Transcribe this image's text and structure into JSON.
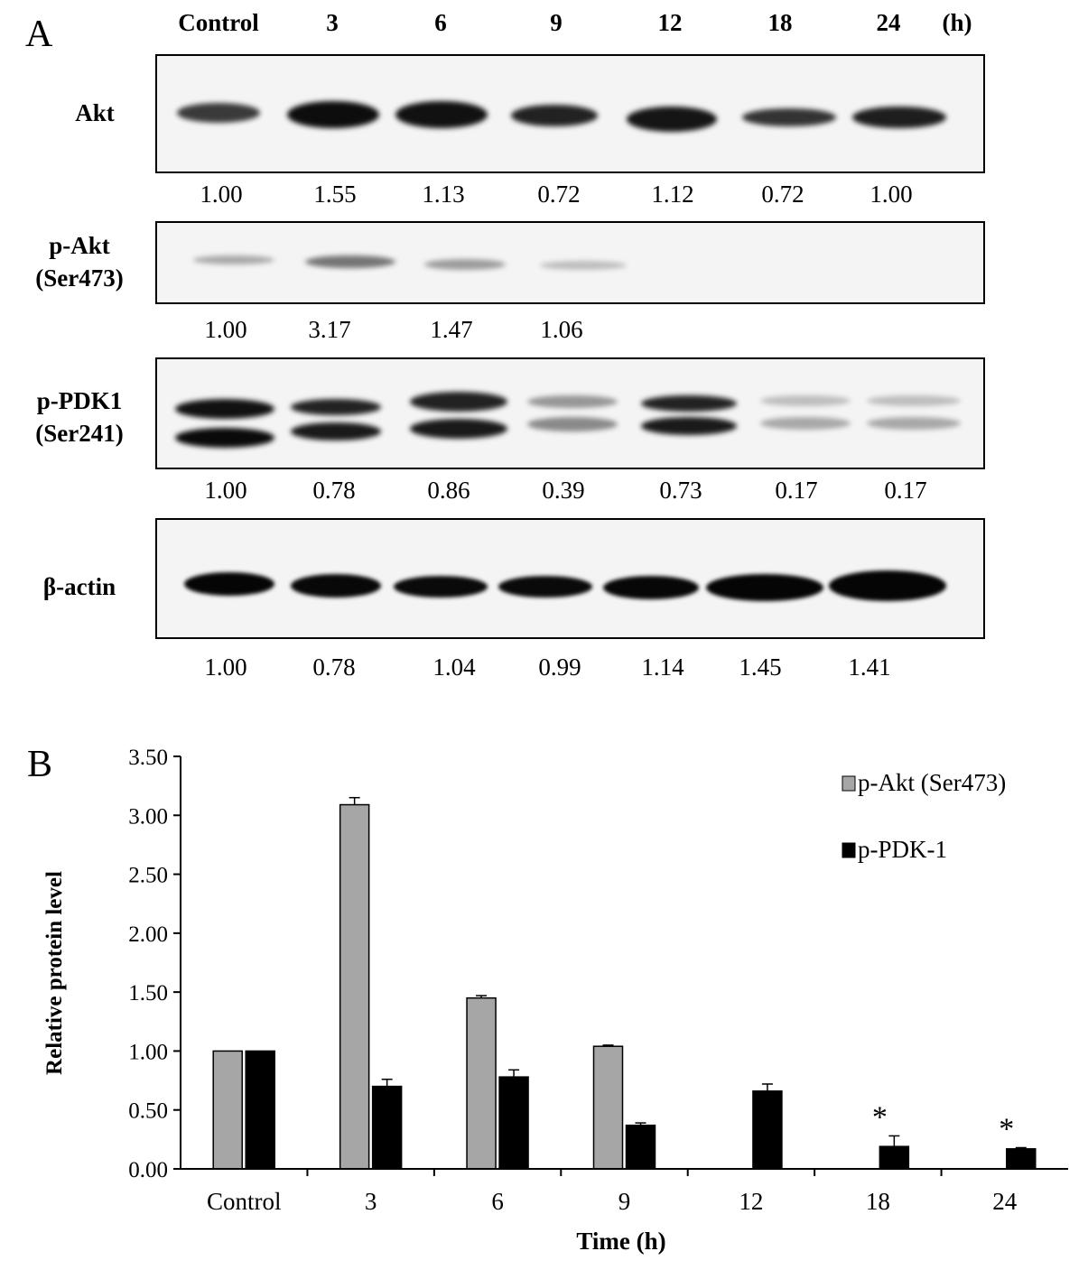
{
  "panel_a": {
    "letter": "A",
    "lanes": [
      "Control",
      "3",
      "6",
      "9",
      "12",
      "18",
      "24"
    ],
    "time_unit": "(h)",
    "blots": [
      {
        "label_lines": [
          "Akt"
        ],
        "values": [
          "1.00",
          "1.55",
          "1.13",
          "0.72",
          "1.12",
          "0.72",
          "1.00"
        ]
      },
      {
        "label_lines": [
          "p-Akt",
          "(Ser473)"
        ],
        "values": [
          "1.00",
          "3.17",
          "1.47",
          "1.06",
          "",
          "",
          ""
        ]
      },
      {
        "label_lines": [
          "p-PDK1",
          "(Ser241)"
        ],
        "values": [
          "1.00",
          "0.78",
          "0.86",
          "0.39",
          "0.73",
          "0.17",
          "0.17"
        ]
      },
      {
        "label_lines": [
          "β-actin"
        ],
        "values": [
          "1.00",
          "0.78",
          "1.04",
          "0.99",
          "1.14",
          "1.45",
          "1.41"
        ]
      }
    ]
  },
  "chart_data": {
    "type": "bar",
    "panel_letter": "B",
    "categories": [
      "Control",
      "3",
      "6",
      "9",
      "12",
      "18",
      "24"
    ],
    "series": [
      {
        "name": "p-Akt (Ser473)",
        "color": "#a6a6a6",
        "values": [
          1.0,
          3.09,
          1.45,
          1.04,
          0,
          0,
          0
        ],
        "errors": [
          0,
          0.06,
          0.02,
          0.01,
          0,
          0,
          0
        ]
      },
      {
        "name": "p-PDK-1",
        "color": "#000000",
        "values": [
          1.0,
          0.7,
          0.78,
          0.37,
          0.66,
          0.19,
          0.17
        ],
        "errors": [
          0,
          0.06,
          0.06,
          0.02,
          0.06,
          0.09,
          0.01
        ]
      }
    ],
    "significance": [
      "",
      "",
      "",
      "",
      "",
      "*",
      "*"
    ],
    "xlabel": "Time (h)",
    "ylabel": "Relative protein level",
    "ylim": [
      0,
      3.5
    ],
    "yticks": [
      "0.00",
      "0.50",
      "1.00",
      "1.50",
      "2.00",
      "2.50",
      "3.00",
      "3.50"
    ],
    "legend_position": "top-right",
    "grid": false
  }
}
